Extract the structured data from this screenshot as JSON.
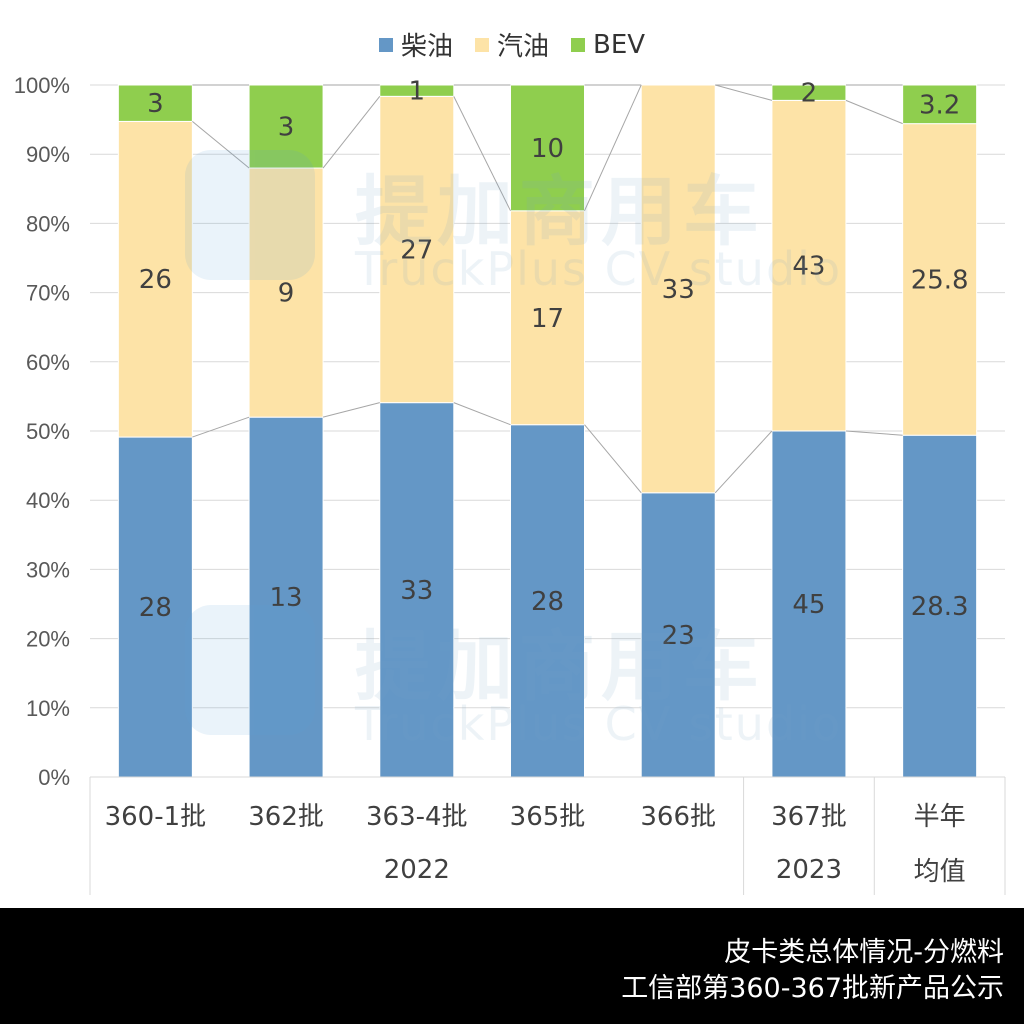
{
  "legend": [
    {
      "name": "柴油",
      "color": "#6497c6"
    },
    {
      "name": "汽油",
      "color": "#fde3a7"
    },
    {
      "name": "BEV",
      "color": "#8fce4e"
    }
  ],
  "watermark": {
    "cn": "提加商用车",
    "en": "TruckPlus CV studio"
  },
  "footer": {
    "line1": "皮卡类总体情况-分燃料",
    "line2": "工信部第360-367批新产品公示"
  },
  "chart_data": {
    "type": "bar",
    "stacked": true,
    "normalized": "percent",
    "title": "",
    "xlabel": "",
    "ylabel": "",
    "ylim": [
      0,
      100
    ],
    "yticks": [
      "0%",
      "10%",
      "20%",
      "30%",
      "40%",
      "50%",
      "60%",
      "70%",
      "80%",
      "90%",
      "100%"
    ],
    "grid": true,
    "legend_position": "top-center",
    "categories": [
      "360-1批",
      "362批",
      "363-4批",
      "365批",
      "366批",
      "367批",
      "半年\n均值"
    ],
    "category_groups": [
      {
        "label": "2022",
        "span": 5
      },
      {
        "label": "2023",
        "span": 1
      },
      {
        "label": "",
        "span": 1
      }
    ],
    "series": [
      {
        "name": "柴油",
        "color": "#6497c6",
        "values": [
          28,
          13,
          33,
          28,
          23,
          45,
          28.3
        ]
      },
      {
        "name": "汽油",
        "color": "#fde3a7",
        "values": [
          26,
          9,
          27,
          17,
          33,
          43,
          25.8
        ]
      },
      {
        "name": "BEV",
        "color": "#8fce4e",
        "values": [
          3,
          3,
          1,
          10,
          0,
          2,
          3.2
        ]
      }
    ],
    "data_labels": true,
    "series_lines": true
  }
}
